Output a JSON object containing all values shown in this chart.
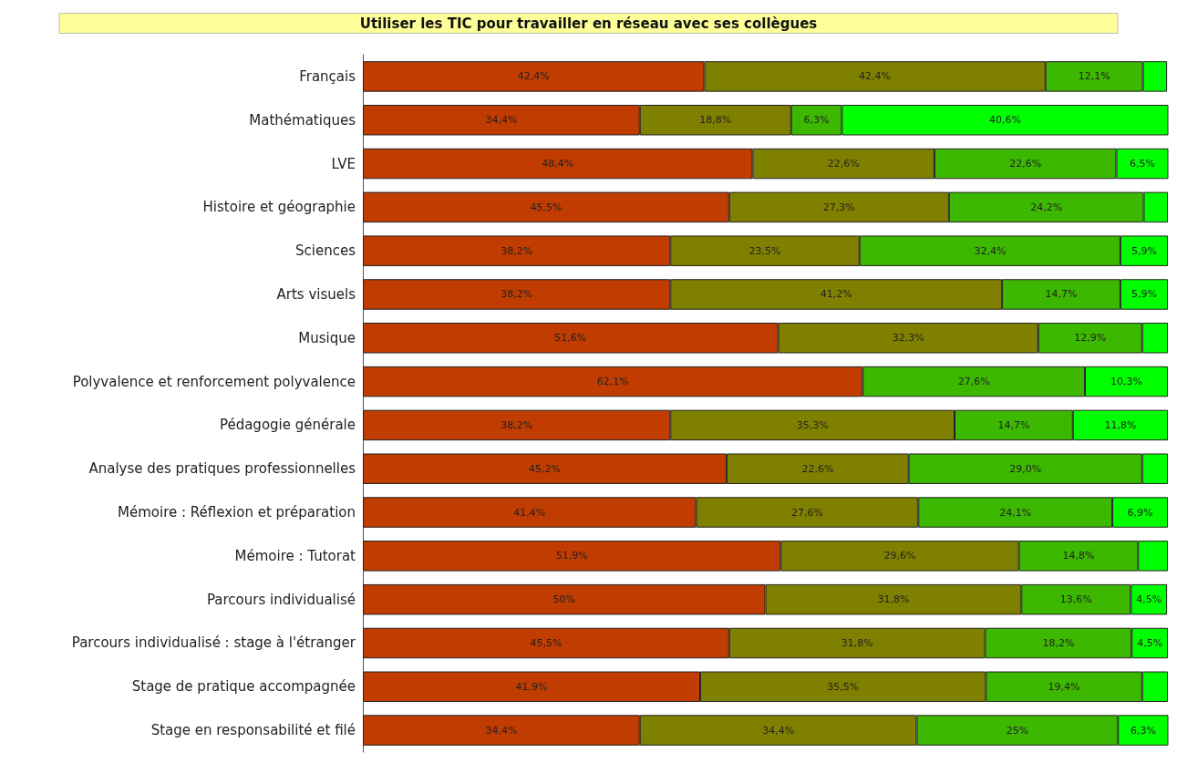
{
  "chart_data": {
    "type": "bar",
    "orientation": "horizontal",
    "stacked": true,
    "title": "Utiliser les TIC pour travailler en réseau avec ses collègues",
    "categories": [
      "Français",
      "Mathématiques",
      "LVE",
      "Histoire et géographie",
      "Sciences",
      "Arts visuels",
      "Musique",
      "Polyvalence et renforcement polyvalence",
      "Pédagogie générale",
      "Analyse des pratiques professionnelles",
      "Mémoire : Réflexion et préparation",
      "Mémoire : Tutorat",
      "Parcours individualisé",
      "Parcours individualisé : stage à l'étranger",
      "Stage de pratique accompagnée",
      "Stage en responsabilité et filé"
    ],
    "xlim": [
      0,
      100
    ],
    "grid": false,
    "tick_labels": "y",
    "series": [
      {
        "color": "#c03c00",
        "values": [
          42.4,
          34.4,
          48.4,
          45.5,
          38.2,
          38.2,
          51.6,
          62.1,
          38.2,
          45.2,
          41.4,
          51.9,
          50,
          45.5,
          41.9,
          34.4
        ],
        "value_labels": [
          "42,4%",
          "34,4%",
          "48,4%",
          "45,5%",
          "38,2%",
          "38,2%",
          "51,6%",
          "62,1%",
          "38,2%",
          "45,2%",
          "41,4%",
          "51,9%",
          "50%",
          "45,5%",
          "41,9%",
          "34,4%"
        ]
      },
      {
        "color": "#808000",
        "values": [
          42.4,
          18.8,
          22.6,
          27.3,
          23.5,
          41.2,
          32.3,
          null,
          35.3,
          22.6,
          27.6,
          29.6,
          31.8,
          31.8,
          35.5,
          34.4
        ],
        "value_labels": [
          "42,4%",
          "18,8%",
          "22,6%",
          "27,3%",
          "23,5%",
          "41,2%",
          "32,3%",
          null,
          "35,3%",
          "22,6%",
          "27,6%",
          "29,6%",
          "31,8%",
          "31,8%",
          "35,5%",
          "34,4%"
        ]
      },
      {
        "color": "#3cb800",
        "values": [
          12.1,
          6.3,
          22.6,
          24.2,
          32.4,
          14.7,
          12.9,
          27.6,
          14.7,
          29.0,
          24.1,
          14.8,
          13.6,
          18.2,
          19.4,
          25
        ],
        "value_labels": [
          "12,1%",
          "6,3%",
          "22,6%",
          "24,2%",
          "32,4%",
          "14,7%",
          "12,9%",
          "27,6%",
          "14,7%",
          "29,0%",
          "24,1%",
          "14,8%",
          "13,6%",
          "18,2%",
          "19,4%",
          "25%"
        ]
      },
      {
        "color": "#00ff00",
        "values": [
          3.0,
          40.6,
          6.5,
          3.0,
          5.9,
          5.9,
          3.2,
          10.3,
          11.8,
          3.2,
          6.9,
          3.7,
          4.5,
          4.5,
          3.2,
          6.3
        ],
        "value_labels": [
          null,
          "40,6%",
          "6,5%",
          null,
          "5,9%",
          "5,9%",
          null,
          "10,3%",
          "11,8%",
          null,
          "6,9%",
          null,
          "4,5%",
          "4,5%",
          null,
          "6,3%"
        ]
      }
    ]
  }
}
